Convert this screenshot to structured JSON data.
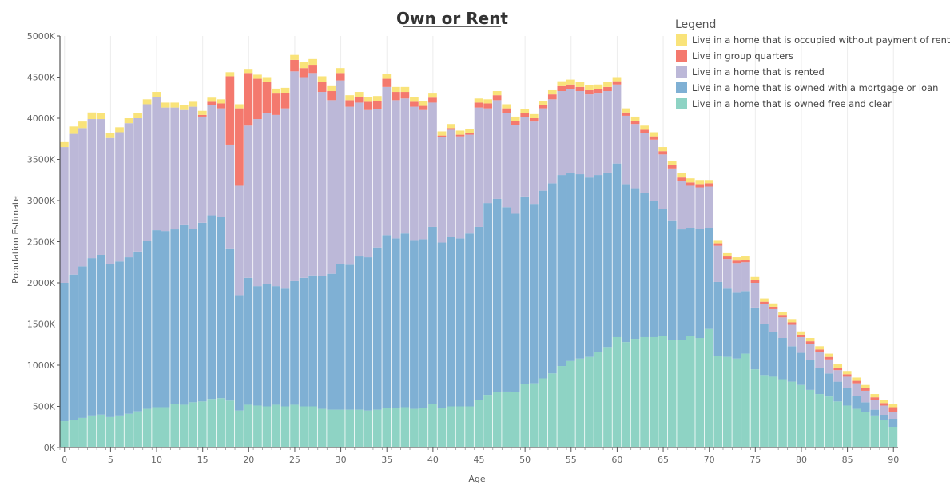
{
  "chart_data": {
    "type": "bar",
    "stacked": true,
    "title": "Own or Rent",
    "xlabel": "Age",
    "ylabel": "Population Estimate",
    "ylim": [
      0,
      5000
    ],
    "y_unit_suffix": "K",
    "y_ticks": [
      "0K",
      "500K",
      "1000K",
      "1500K",
      "2000K",
      "2500K",
      "3000K",
      "3500K",
      "4000K",
      "4500K",
      "5000K"
    ],
    "x_ticks": [
      "0",
      "5",
      "10",
      "15",
      "20",
      "25",
      "30",
      "35",
      "40",
      "45",
      "50",
      "55",
      "60",
      "65",
      "70",
      "75",
      "80",
      "85",
      "90"
    ],
    "x": [
      0,
      1,
      2,
      3,
      4,
      5,
      6,
      7,
      8,
      9,
      10,
      11,
      12,
      13,
      14,
      15,
      16,
      17,
      18,
      19,
      20,
      21,
      22,
      23,
      24,
      25,
      26,
      27,
      28,
      29,
      30,
      31,
      32,
      33,
      34,
      35,
      36,
      37,
      38,
      39,
      40,
      41,
      42,
      43,
      44,
      45,
      46,
      47,
      48,
      49,
      50,
      51,
      52,
      53,
      54,
      55,
      56,
      57,
      58,
      59,
      60,
      61,
      62,
      63,
      64,
      65,
      66,
      67,
      68,
      69,
      70,
      71,
      72,
      73,
      74,
      75,
      76,
      77,
      78,
      79,
      80,
      81,
      82,
      83,
      84,
      85,
      86,
      87,
      88,
      89,
      90
    ],
    "grid_x": true,
    "legend": {
      "title": "Legend",
      "position": "top-right"
    },
    "series": [
      {
        "name": "Live in a home that is owned free and clear",
        "color": "#8ed3c4",
        "values": [
          320,
          330,
          360,
          380,
          400,
          370,
          380,
          410,
          440,
          470,
          490,
          490,
          530,
          520,
          550,
          560,
          590,
          600,
          570,
          450,
          520,
          510,
          500,
          520,
          500,
          520,
          500,
          500,
          470,
          460,
          460,
          460,
          460,
          450,
          460,
          480,
          480,
          490,
          470,
          480,
          530,
          480,
          500,
          500,
          500,
          580,
          640,
          670,
          680,
          670,
          770,
          780,
          840,
          900,
          990,
          1050,
          1080,
          1100,
          1160,
          1220,
          1340,
          1280,
          1320,
          1340,
          1340,
          1350,
          1310,
          1310,
          1350,
          1330,
          1440,
          1110,
          1100,
          1080,
          1140,
          950,
          880,
          860,
          830,
          800,
          760,
          700,
          650,
          620,
          560,
          510,
          470,
          430,
          380,
          330,
          250
        ]
      },
      {
        "name": "Live in a home that is owned with a mortgage or loan",
        "color": "#7fb0d4",
        "values": [
          1680,
          1770,
          1840,
          1920,
          1940,
          1860,
          1880,
          1900,
          1940,
          2040,
          2150,
          2140,
          2120,
          2190,
          2110,
          2170,
          2230,
          2200,
          1850,
          1400,
          1540,
          1450,
          1490,
          1440,
          1430,
          1500,
          1560,
          1590,
          1610,
          1650,
          1770,
          1760,
          1860,
          1860,
          1970,
          2100,
          2060,
          2110,
          2050,
          2050,
          2150,
          2010,
          2060,
          2040,
          2100,
          2100,
          2330,
          2350,
          2240,
          2170,
          2280,
          2180,
          2280,
          2310,
          2320,
          2280,
          2240,
          2180,
          2150,
          2120,
          2110,
          1920,
          1830,
          1750,
          1660,
          1550,
          1450,
          1340,
          1320,
          1330,
          1230,
          900,
          830,
          800,
          760,
          750,
          620,
          540,
          500,
          430,
          390,
          360,
          320,
          280,
          240,
          210,
          160,
          120,
          80,
          60,
          90
        ]
      },
      {
        "name": "Live in a home that is rented",
        "color": "#bcb8d8",
        "values": [
          1650,
          1710,
          1680,
          1690,
          1650,
          1530,
          1570,
          1630,
          1620,
          1660,
          1620,
          1500,
          1480,
          1390,
          1480,
          1290,
          1340,
          1320,
          1260,
          1330,
          1850,
          2030,
          2070,
          2080,
          2190,
          2550,
          2440,
          2460,
          2240,
          2110,
          2230,
          1920,
          1870,
          1790,
          1680,
          1800,
          1680,
          1640,
          1620,
          1570,
          1510,
          1280,
          1300,
          1240,
          1200,
          1450,
          1150,
          1200,
          1140,
          1080,
          960,
          1000,
          1000,
          1020,
          1020,
          1020,
          1010,
          1010,
          990,
          990,
          960,
          830,
          780,
          730,
          740,
          660,
          630,
          590,
          510,
          500,
          500,
          440,
          360,
          360,
          350,
          300,
          240,
          280,
          250,
          260,
          190,
          200,
          190,
          170,
          140,
          140,
          150,
          140,
          120,
          120,
          90
        ]
      },
      {
        "name": "Live in group quarters",
        "color": "#f4796e",
        "values": [
          0,
          0,
          0,
          0,
          0,
          0,
          0,
          0,
          0,
          0,
          0,
          0,
          0,
          0,
          0,
          20,
          40,
          60,
          830,
          940,
          640,
          490,
          380,
          260,
          190,
          140,
          110,
          100,
          120,
          110,
          90,
          80,
          70,
          100,
          100,
          100,
          100,
          80,
          60,
          50,
          60,
          20,
          20,
          20,
          20,
          60,
          60,
          60,
          60,
          50,
          50,
          40,
          40,
          60,
          60,
          60,
          50,
          50,
          50,
          50,
          40,
          40,
          40,
          40,
          40,
          40,
          40,
          40,
          40,
          40,
          40,
          30,
          30,
          30,
          30,
          30,
          30,
          30,
          30,
          30,
          30,
          30,
          30,
          30,
          30,
          30,
          30,
          30,
          30,
          30,
          60
        ]
      },
      {
        "name": "Live in a home that is occupied without payment of rent",
        "color": "#f9e37a",
        "values": [
          60,
          90,
          80,
          80,
          70,
          60,
          60,
          60,
          60,
          60,
          60,
          60,
          60,
          60,
          60,
          50,
          50,
          50,
          50,
          50,
          50,
          50,
          60,
          60,
          60,
          60,
          70,
          70,
          70,
          60,
          60,
          60,
          60,
          60,
          60,
          60,
          60,
          60,
          60,
          60,
          50,
          50,
          50,
          50,
          50,
          50,
          50,
          50,
          50,
          50,
          50,
          50,
          50,
          50,
          60,
          60,
          60,
          60,
          60,
          60,
          50,
          50,
          50,
          50,
          50,
          50,
          50,
          50,
          50,
          50,
          40,
          40,
          40,
          40,
          40,
          40,
          40,
          40,
          40,
          40,
          40,
          40,
          40,
          40,
          40,
          40,
          40,
          40,
          40,
          40,
          40
        ]
      }
    ]
  }
}
